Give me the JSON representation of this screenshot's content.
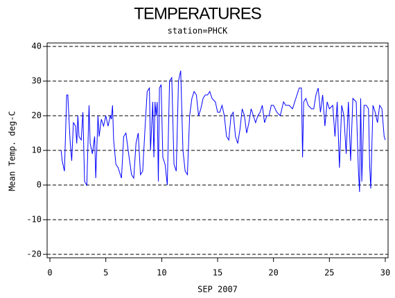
{
  "chart_data": {
    "type": "line",
    "title": "TEMPERATURES",
    "subtitle": "station=PHCK",
    "x_label": "SEP 2007",
    "y_label": "Mean Temp. deg-C",
    "x": [
      1.0,
      1.1,
      1.3,
      1.5,
      1.6,
      1.8,
      1.95,
      2.1,
      2.3,
      2.4,
      2.5,
      2.6,
      2.8,
      2.95,
      3.1,
      3.3,
      3.5,
      3.6,
      3.8,
      4.0,
      4.1,
      4.3,
      4.4,
      4.6,
      4.8,
      5.0,
      5.2,
      5.4,
      5.5,
      5.6,
      5.7,
      5.9,
      6.1,
      6.4,
      6.6,
      6.8,
      7.0,
      7.3,
      7.5,
      7.7,
      7.9,
      8.1,
      8.3,
      8.5,
      8.7,
      8.9,
      9.0,
      9.2,
      9.3,
      9.4,
      9.5,
      9.6,
      9.7,
      9.8,
      9.95,
      10.1,
      10.3,
      10.4,
      10.5,
      10.7,
      10.9,
      11.1,
      11.3,
      11.5,
      11.7,
      11.9,
      12.1,
      12.3,
      12.5,
      12.7,
      12.9,
      13.1,
      13.3,
      13.5,
      13.7,
      13.9,
      14.1,
      14.3,
      14.5,
      14.8,
      15.0,
      15.2,
      15.4,
      15.6,
      15.8,
      16.0,
      16.2,
      16.4,
      16.6,
      16.8,
      17.0,
      17.2,
      17.4,
      17.6,
      17.8,
      18.0,
      18.2,
      18.4,
      18.6,
      18.8,
      19.0,
      19.2,
      19.4,
      19.6,
      19.8,
      20.0,
      20.3,
      20.6,
      20.9,
      21.1,
      21.4,
      21.7,
      22.0,
      22.3,
      22.5,
      22.6,
      22.7,
      22.9,
      23.1,
      23.4,
      23.6,
      23.8,
      24.0,
      24.2,
      24.4,
      24.6,
      24.8,
      25.0,
      25.3,
      25.5,
      25.7,
      25.9,
      26.1,
      26.3,
      26.5,
      26.7,
      26.9,
      27.1,
      27.4,
      27.6,
      27.7,
      27.8,
      27.9,
      28.1,
      28.3,
      28.5,
      28.6,
      28.7,
      28.9,
      29.1,
      29.3,
      29.5,
      29.7,
      29.9,
      30.0
    ],
    "values": [
      10,
      7,
      4,
      26,
      26,
      13,
      7,
      18,
      17,
      12,
      20,
      14,
      13,
      21,
      1,
      0,
      23,
      12,
      9,
      14,
      2,
      20,
      14,
      19,
      17,
      20,
      17,
      20,
      19,
      23,
      13,
      6,
      5,
      2,
      14,
      15,
      10,
      3,
      2,
      12,
      15,
      3,
      4,
      16,
      27,
      28,
      10,
      24,
      8,
      24,
      20,
      24,
      1,
      28,
      29,
      8,
      6,
      3,
      0,
      30,
      31,
      6,
      4,
      30,
      33,
      10,
      4,
      3,
      20,
      25,
      27,
      26,
      20,
      22,
      25,
      26,
      26,
      27,
      25,
      24,
      21,
      21,
      23,
      20,
      14,
      13,
      20,
      21,
      14,
      12,
      16,
      22,
      20,
      15,
      18,
      22,
      20,
      18,
      20,
      21,
      23,
      18,
      20,
      20,
      23,
      23,
      21,
      20,
      24,
      23,
      23,
      22,
      25,
      28,
      28,
      8,
      24,
      25,
      23,
      22,
      22,
      26,
      28,
      21,
      26,
      17,
      24,
      22,
      23,
      14,
      24,
      5,
      23,
      20,
      9,
      24,
      7,
      25,
      24,
      4,
      -2,
      25,
      1,
      23,
      23,
      22,
      6,
      -1,
      23,
      21,
      18,
      23,
      22,
      14,
      13
    ],
    "color": "#0000ff",
    "xlim": [
      -0.25,
      30.25
    ],
    "xticks": [
      0,
      5,
      10,
      15,
      20,
      25,
      30
    ],
    "ylim": [
      -21,
      41
    ],
    "yticks": [
      -20,
      -10,
      0,
      10,
      20,
      30,
      40
    ],
    "grid": true
  }
}
